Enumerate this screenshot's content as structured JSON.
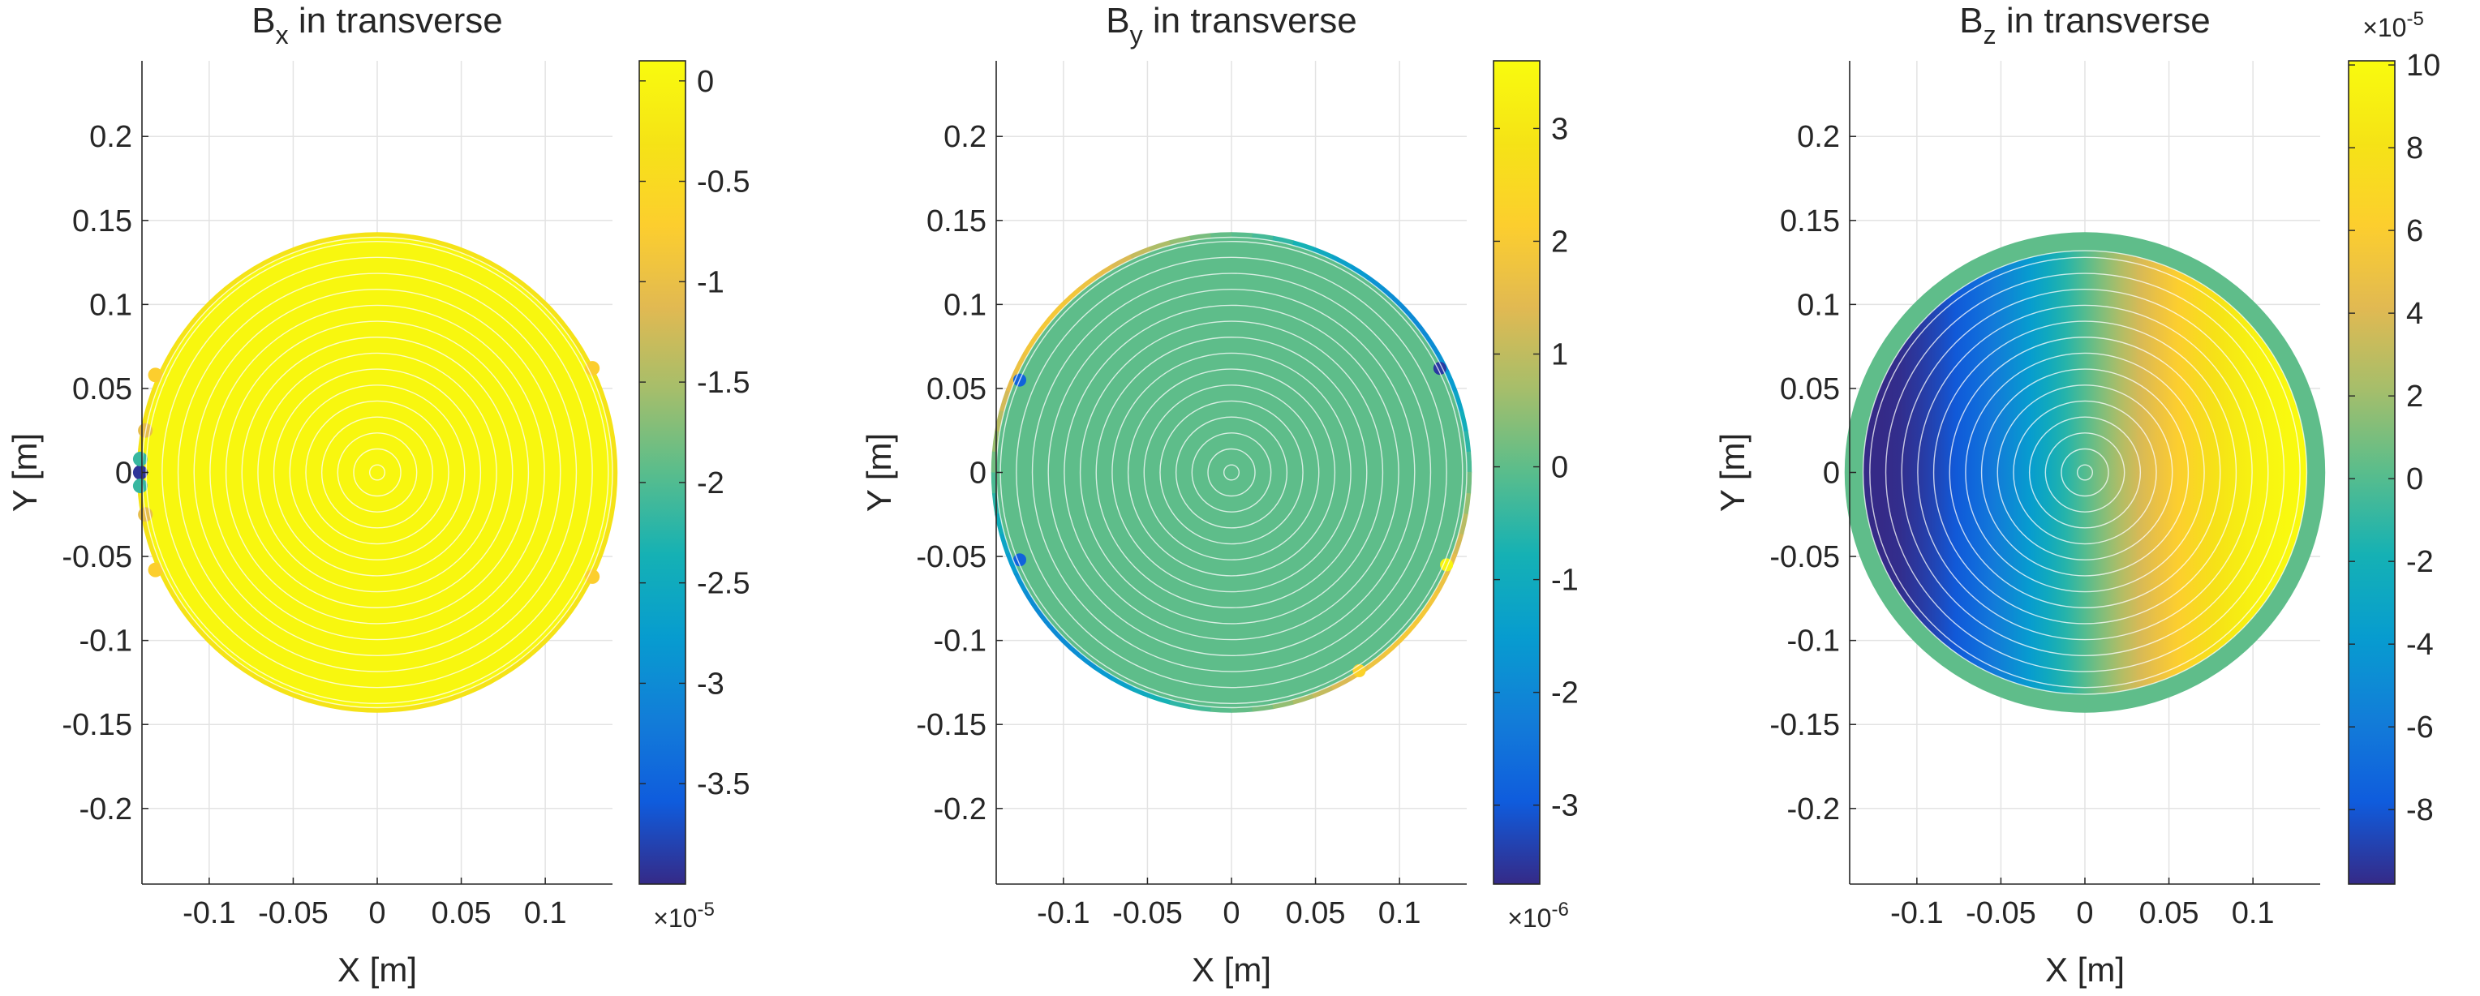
{
  "chart_data": [
    {
      "type": "heatmap",
      "title": {
        "base": "B",
        "sub": "x",
        "rest": " in transverse"
      },
      "xlabel": "X [m]",
      "ylabel": "Y [m]",
      "xlim": [
        -0.14,
        0.14
      ],
      "ylim": [
        -0.245,
        0.245
      ],
      "xticks": [
        -0.1,
        -0.05,
        0,
        0.05,
        0.1
      ],
      "xtick_labels": [
        "-0.1",
        "-0.05",
        "0",
        "0.05",
        "0.1"
      ],
      "yticks": [
        0.2,
        0.15,
        0.1,
        0.05,
        0,
        -0.05,
        -0.1,
        -0.15,
        -0.2
      ],
      "ytick_labels": [
        "0.2",
        "0.15",
        "0.1",
        "0.05",
        "0",
        "-0.05",
        "-0.1",
        "-0.15",
        "-0.2"
      ],
      "grid": true,
      "disk_radius": 0.143,
      "inner_radius": 0.14,
      "field": "bx",
      "colorbar": {
        "range": [
          -4.0,
          0.1
        ],
        "ticks": [
          0,
          -0.5,
          -1,
          -1.5,
          -2,
          -2.5,
          -3,
          -3.5
        ],
        "tick_labels": [
          "0",
          "-0.5",
          "-1",
          "-1.5",
          "-2",
          "-2.5",
          "-3",
          "-3.5"
        ],
        "multiplier": {
          "base": "×10",
          "exp": "-5"
        },
        "multiplier_position": "bottom"
      }
    },
    {
      "type": "heatmap",
      "title": {
        "base": "B",
        "sub": "y",
        "rest": " in transverse"
      },
      "xlabel": "X [m]",
      "ylabel": "Y [m]",
      "xlim": [
        -0.14,
        0.14
      ],
      "ylim": [
        -0.245,
        0.245
      ],
      "xticks": [
        -0.1,
        -0.05,
        0,
        0.05,
        0.1
      ],
      "xtick_labels": [
        "-0.1",
        "-0.05",
        "0",
        "0.05",
        "0.1"
      ],
      "yticks": [
        0.2,
        0.15,
        0.1,
        0.05,
        0,
        -0.05,
        -0.1,
        -0.15,
        -0.2
      ],
      "ytick_labels": [
        "0.2",
        "0.15",
        "0.1",
        "0.05",
        "0",
        "-0.05",
        "-0.1",
        "-0.15",
        "-0.2"
      ],
      "grid": true,
      "disk_radius": 0.143,
      "inner_radius": 0.14,
      "field": "by",
      "colorbar": {
        "range": [
          -3.7,
          3.6
        ],
        "ticks": [
          3,
          2,
          1,
          0,
          -1,
          -2,
          -3
        ],
        "tick_labels": [
          "3",
          "2",
          "1",
          "0",
          "-1",
          "-2",
          "-3"
        ],
        "multiplier": {
          "base": "×10",
          "exp": "-6"
        },
        "multiplier_position": "bottom"
      }
    },
    {
      "type": "heatmap",
      "title": {
        "base": "B",
        "sub": "z",
        "rest": " in transverse"
      },
      "xlabel": "X [m]",
      "ylabel": "Y [m]",
      "xlim": [
        -0.14,
        0.14
      ],
      "ylim": [
        -0.245,
        0.245
      ],
      "xticks": [
        -0.1,
        -0.05,
        0,
        0.05,
        0.1
      ],
      "xtick_labels": [
        "-0.1",
        "-0.05",
        "0",
        "0.05",
        "0.1"
      ],
      "yticks": [
        0.2,
        0.15,
        0.1,
        0.05,
        0,
        -0.05,
        -0.1,
        -0.15,
        -0.2
      ],
      "ytick_labels": [
        "0.2",
        "0.15",
        "0.1",
        "0.05",
        "0",
        "-0.05",
        "-0.1",
        "-0.15",
        "-0.2"
      ],
      "grid": true,
      "disk_radius": 0.143,
      "inner_radius": 0.132,
      "field": "bz",
      "colorbar": {
        "range": [
          -9.8,
          10.1
        ],
        "ticks": [
          10,
          8,
          6,
          4,
          2,
          0,
          -2,
          -4,
          -6,
          -8
        ],
        "tick_labels": [
          "10",
          "8",
          "6",
          "4",
          "2",
          "0",
          "-2",
          "-4",
          "-6",
          "-8"
        ],
        "multiplier": {
          "base": "×10",
          "exp": "-5"
        },
        "multiplier_position": "top"
      }
    }
  ]
}
